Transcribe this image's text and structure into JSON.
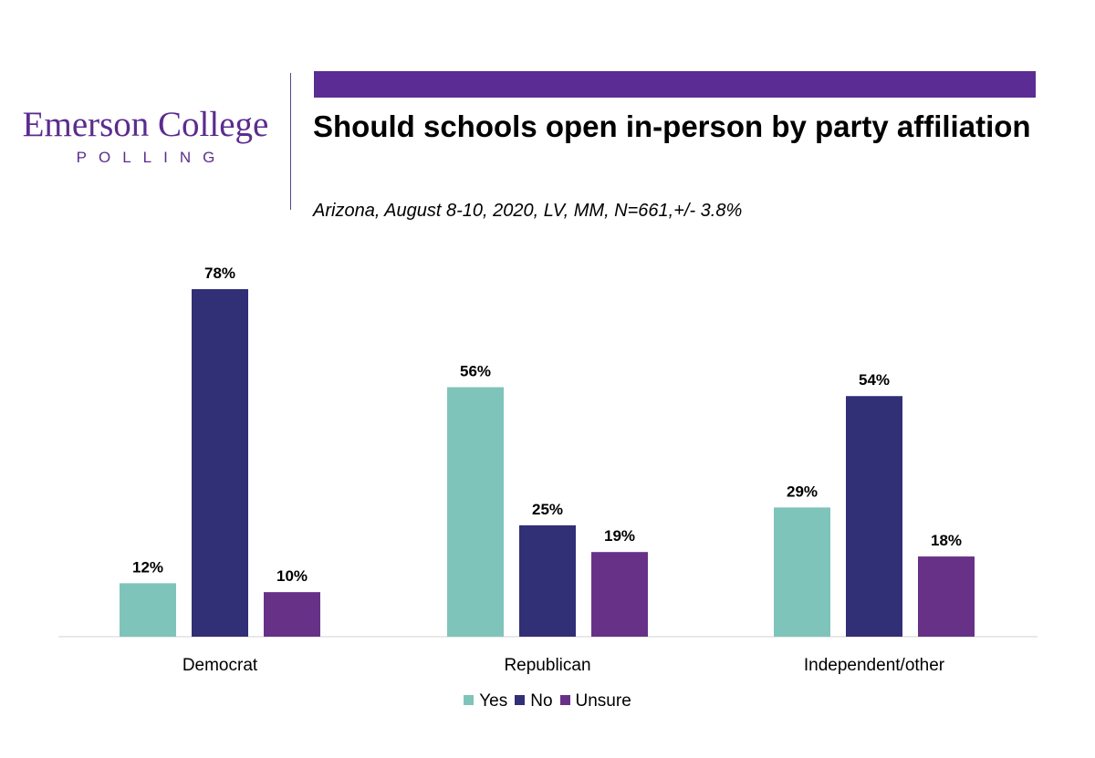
{
  "logo": {
    "main": "Emerson College",
    "sub": "POLLING"
  },
  "header": {
    "title": "Should schools open in-person by party affiliation",
    "subtitle": "Arizona, August 8-10, 2020, LV, MM,  N=661,+/- 3.8%"
  },
  "colors": {
    "accent": "#5b2c93",
    "Yes": "#7fc4ba",
    "No": "#312f76",
    "Unsure": "#683188"
  },
  "chart_data": {
    "type": "bar",
    "categories": [
      "Democrat",
      "Republican",
      "Independent/other"
    ],
    "series": [
      {
        "name": "Yes",
        "values": [
          12,
          56,
          29
        ],
        "labels": [
          "12%",
          "56%",
          "29%"
        ]
      },
      {
        "name": "No",
        "values": [
          78,
          25,
          54
        ],
        "labels": [
          "78%",
          "25%",
          "54%"
        ]
      },
      {
        "name": "Unsure",
        "values": [
          10,
          19,
          18
        ],
        "labels": [
          "10%",
          "19%",
          "18%"
        ]
      }
    ],
    "ylim": [
      0,
      78
    ],
    "legend": "bottom-center",
    "grid": false
  }
}
